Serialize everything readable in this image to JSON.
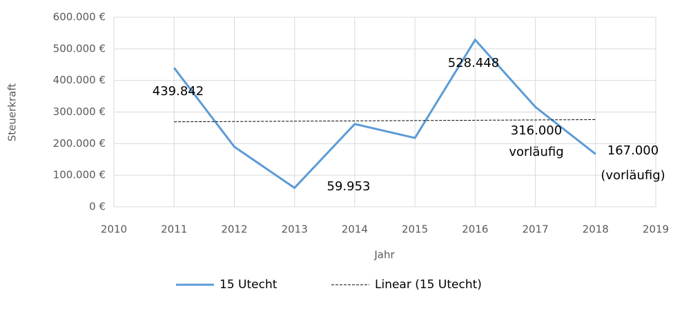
{
  "chart_data": {
    "type": "line",
    "x": [
      2011,
      2012,
      2013,
      2014,
      2015,
      2016,
      2017,
      2018
    ],
    "series": [
      {
        "name": "15 Utecht",
        "color": "#5b9bd5",
        "values": [
          439842,
          190000,
          59953,
          262000,
          218000,
          528448,
          316000,
          167000
        ],
        "value_labels": [
          "439.842",
          null,
          "59.953",
          null,
          null,
          "528.448",
          "316.000",
          "167.000"
        ]
      },
      {
        "name": "Linear (15 Utecht)",
        "color": "#000000",
        "dashed": true,
        "values": [
          269000,
          270000,
          271000,
          272000,
          273000,
          274000,
          275000,
          276000
        ]
      }
    ],
    "annotations": [
      "vorläufig",
      "(vorläufig)"
    ],
    "xlabel": "Jahr",
    "ylabel": "Steuerkraft",
    "xlim": [
      2010,
      2019
    ],
    "xticks": [
      2010,
      2011,
      2012,
      2013,
      2014,
      2015,
      2016,
      2017,
      2018,
      2019
    ],
    "ylim": [
      0,
      600000
    ],
    "yticks": [
      {
        "value": 0,
        "label": "0 €"
      },
      {
        "value": 100000,
        "label": "100.000 €"
      },
      {
        "value": 200000,
        "label": "200.000 €"
      },
      {
        "value": 300000,
        "label": "300.000 €"
      },
      {
        "value": 400000,
        "label": "400.000 €"
      },
      {
        "value": 500000,
        "label": "500.000 €"
      },
      {
        "value": 600000,
        "label": "600.000 €"
      }
    ],
    "grid": true
  }
}
